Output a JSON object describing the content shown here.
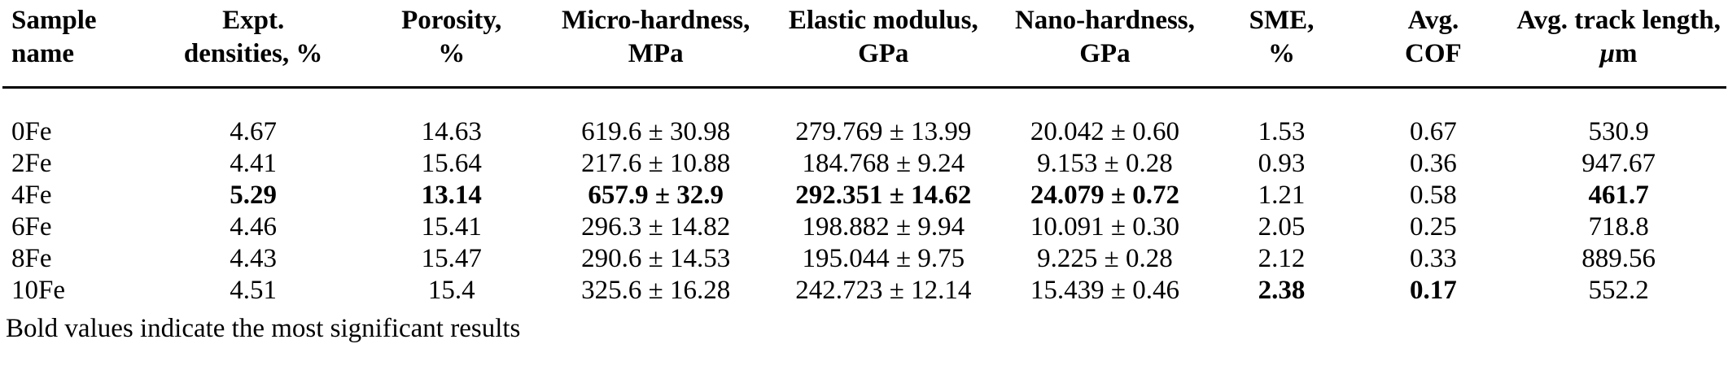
{
  "table": {
    "columns": [
      {
        "id": "sample",
        "line1": "Sample",
        "line2": "name",
        "align": "left"
      },
      {
        "id": "density",
        "line1": "Expt.",
        "line2": "densities, %",
        "align": "center"
      },
      {
        "id": "porosity",
        "line1": "Porosity,",
        "line2": "%",
        "align": "center"
      },
      {
        "id": "microhardness",
        "line1": "Micro-hardness,",
        "line2": "MPa",
        "align": "center"
      },
      {
        "id": "elastic",
        "line1": "Elastic modulus,",
        "line2": "GPa",
        "align": "center"
      },
      {
        "id": "nanohardness",
        "line1": "Nano-hardness,",
        "line2": "GPa",
        "align": "center"
      },
      {
        "id": "sme",
        "line1": "SME,",
        "line2": "%",
        "align": "center"
      },
      {
        "id": "cof",
        "line1": "Avg.",
        "line2": "COF",
        "align": "center"
      },
      {
        "id": "track",
        "line1": "Avg. track length,",
        "line2": "μm",
        "align": "center"
      }
    ],
    "col_widths_pct": [
      8.6,
      11.9,
      11.1,
      12.6,
      13.8,
      11.9,
      8.6,
      9.0,
      12.5
    ],
    "rows": [
      {
        "cells": [
          "0Fe",
          "4.67",
          "14.63",
          "619.6 ± 30.98",
          "279.769 ± 13.99",
          "20.042 ± 0.60",
          "1.53",
          "0.67",
          "530.9"
        ],
        "bold": []
      },
      {
        "cells": [
          "2Fe",
          "4.41",
          "15.64",
          "217.6 ± 10.88",
          "184.768 ± 9.24",
          "9.153 ± 0.28",
          "0.93",
          "0.36",
          "947.67"
        ],
        "bold": []
      },
      {
        "cells": [
          "4Fe",
          "5.29",
          "13.14",
          "657.9 ± 32.9",
          "292.351 ± 14.62",
          "24.079 ± 0.72",
          "1.21",
          "0.58",
          "461.7"
        ],
        "bold": [
          1,
          2,
          3,
          4,
          5,
          8
        ]
      },
      {
        "cells": [
          "6Fe",
          "4.46",
          "15.41",
          "296.3 ± 14.82",
          "198.882 ± 9.94",
          "10.091 ± 0.30",
          "2.05",
          "0.25",
          "718.8"
        ],
        "bold": []
      },
      {
        "cells": [
          "8Fe",
          "4.43",
          "15.47",
          "290.6 ± 14.53",
          "195.044 ± 9.75",
          "9.225 ± 0.28",
          "2.12",
          "0.33",
          "889.56"
        ],
        "bold": []
      },
      {
        "cells": [
          "10Fe",
          "4.51",
          "15.4",
          "325.6 ± 16.28",
          "242.723 ± 12.14",
          "15.439 ± 0.46",
          "2.38",
          "0.17",
          "552.2"
        ],
        "bold": [
          6,
          7
        ]
      }
    ],
    "footnote": "Bold values indicate the most significant results"
  }
}
